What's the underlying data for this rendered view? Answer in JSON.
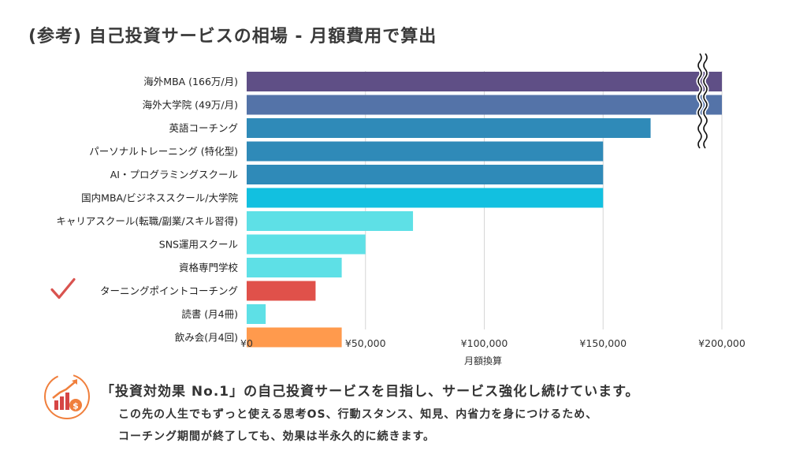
{
  "title": "(参考) 自己投資サービスの相場 - 月額費用で算出",
  "chart_data": {
    "type": "bar",
    "orientation": "horizontal",
    "title": "(参考) 自己投資サービスの相場 - 月額費用で算出",
    "xlabel": "月額換算",
    "ylabel": "",
    "xlim": [
      0,
      200000
    ],
    "xticks": [
      0,
      50000,
      100000,
      150000,
      200000
    ],
    "xtick_labels": [
      "¥0",
      "¥50,000",
      "¥100,000",
      "¥150,000",
      "¥200,000"
    ],
    "grid": "vertical",
    "axis_break": "x at ¥200,000 (bars exceed axis)",
    "categories": [
      "海外MBA (166万/月)",
      "海外大学院 (49万/月)",
      "英語コーチング",
      "パーソナルトレーニング (特化型)",
      "AI・プログラミングスクール",
      "国内MBA/ビジネススクール/大学院",
      "キャリアスクール(転職/副業/スキル習得)",
      "SNS運用スクール",
      "資格専門学校",
      "ターニングポイントコーチング",
      "読書 (月4冊)",
      "飲み会(月4回)"
    ],
    "values": [
      1660000,
      490000,
      170000,
      150000,
      150000,
      150000,
      70000,
      50000,
      40000,
      29000,
      8000,
      40000
    ],
    "colors": [
      "#5f4f86",
      "#5473a8",
      "#2f8ab8",
      "#2f8ab8",
      "#2f8ab8",
      "#12c0e0",
      "#5ee0e6",
      "#5ee0e6",
      "#5ee0e6",
      "#e0514a",
      "#5ee0e6",
      "#ff9a4d"
    ],
    "highlight": "ターニングポイントコーチング",
    "highlight_marker": "check-mark-icon",
    "highlight_color": "#d9534f"
  },
  "footer": {
    "icon": "growth-chart-coin-icon",
    "icon_color": "#f07f3c",
    "headline": "「投資対効果 No.1」の自己投資サービスを目指し、サービス強化し続けています。",
    "body_line1": "この先の人生でもずっと使える思考OS、行動スタンス、知見、内省力を身につけるため、",
    "body_line2": "コーチング期間が終了しても、効果は半永久的に続きます。"
  }
}
